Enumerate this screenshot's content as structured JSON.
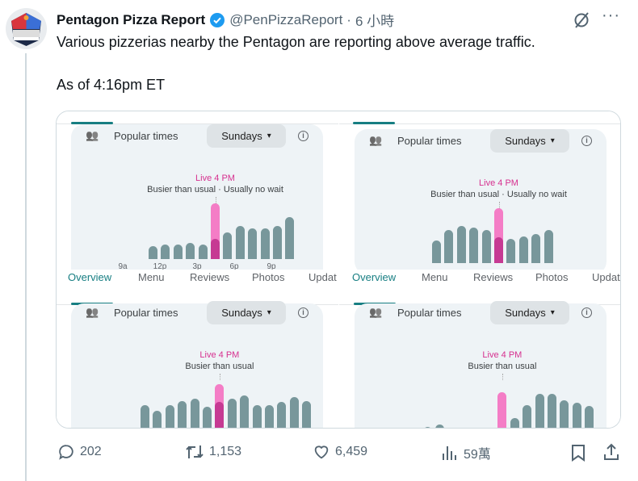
{
  "tweet": {
    "author_name": "Pentagon Pizza Report",
    "handle": "@PenPizzaReport",
    "separator": "·",
    "time": "6 小時",
    "verified": true,
    "avatar_text": "PENTAGON PIZZA REPORT",
    "text_line1": "Various pizzerias nearby the Pentagon are reporting above average traffic.",
    "text_line2": "As of 4:16pm ET"
  },
  "colors": {
    "accent_teal": "#177e82",
    "live_pink": "#f47dc6",
    "live_dark": "#c63a93",
    "bar_gray": "#78979b",
    "verified_blue": "#1d9bf0"
  },
  "panels": [
    {
      "title": "Popular times",
      "day": "Sundays",
      "live": "Live 4 PM",
      "status": "Busier than usual · Usually no wait",
      "ticks": [
        "9a",
        "12p",
        "3p",
        "6p",
        "9p"
      ],
      "tabs": [
        "Overview",
        "Menu",
        "Reviews",
        "Photos",
        "Updat"
      ],
      "bars": [
        20,
        23,
        23,
        25,
        23,
        86,
        41,
        51,
        48,
        48,
        51,
        65
      ],
      "live_index": 5,
      "live_usual": 31
    },
    {
      "title": "Popular times",
      "day": "Sundays",
      "live": "Live 4 PM",
      "status": "Busier than usual · Usually no wait",
      "tabs": [
        "Overview",
        "Menu",
        "Reviews",
        "Photos",
        "Updat"
      ],
      "bars": [
        35,
        51,
        58,
        55,
        51,
        85,
        38,
        41,
        45,
        51
      ],
      "live_index": 5,
      "live_usual": 40
    },
    {
      "title": "Popular times",
      "day": "Sundays",
      "live": "Live 4 PM",
      "status": "Busier than usual",
      "bars": [
        50,
        41,
        50,
        56,
        60,
        48,
        83,
        60,
        65,
        50,
        50,
        55,
        63,
        56
      ],
      "live_index": 6,
      "live_usual": 55
    },
    {
      "title": "Popular times",
      "day": "Sundays",
      "live": "Live 4 PM",
      "status": "Busier than usual",
      "bars": [
        16,
        20,
        0,
        0,
        0,
        0,
        70,
        30,
        50,
        68,
        68,
        58,
        54,
        49
      ],
      "live_index": 6,
      "live_usual": 13
    }
  ],
  "actions": {
    "replies": "202",
    "reposts": "1,153",
    "likes": "6,459",
    "views": "59萬"
  },
  "icons": {
    "grok": "grok-icon",
    "more": "more-icon",
    "reply": "reply-icon",
    "repost": "repost-icon",
    "like": "heart-icon",
    "views": "views-icon",
    "bookmark": "bookmark-icon",
    "share": "share-icon"
  }
}
